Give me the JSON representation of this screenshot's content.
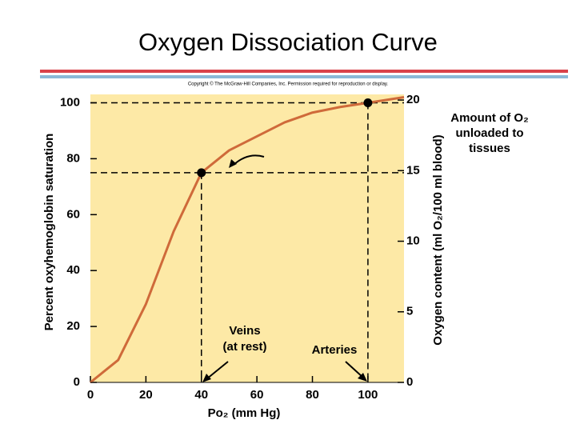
{
  "chart_data": {
    "type": "line",
    "title": "Oxygen Dissociation Curve",
    "copyright": "Copyright © The McGraw-Hill Companies, Inc. Permission required for reproduction or display.",
    "x_label": "Po₂ (mm Hg)",
    "y_label": "Percent oxyhemoglobin saturation",
    "y2_label": "Oxygen content (ml O₂/100 ml blood)",
    "x": [
      0,
      10,
      20,
      30,
      40,
      50,
      60,
      70,
      80,
      90,
      100,
      113
    ],
    "series": [
      {
        "color": "#cf6a3a",
        "values": [
          0,
          8,
          28,
          54,
          75,
          83,
          88,
          93,
          96.5,
          98.5,
          100,
          102
        ]
      }
    ],
    "points": [
      {
        "x": 40,
        "y": 75
      },
      {
        "x": 100,
        "y": 100
      }
    ],
    "annotations": [
      {
        "lines": [
          "Veins",
          "(at rest)"
        ]
      },
      {
        "lines": [
          "Arteries"
        ]
      },
      {
        "lines": [
          "Amount of O₂",
          "unloaded to",
          "tissues"
        ]
      }
    ],
    "xlim": [
      0,
      113
    ],
    "xticks": [
      0,
      20,
      40,
      60,
      80,
      100
    ],
    "ylim": [
      0,
      103
    ],
    "yticks": [
      0,
      20,
      40,
      60,
      80,
      100
    ],
    "y2lim": [
      0,
      20.4
    ],
    "y2ticks": [
      0,
      5,
      10,
      15,
      20
    ],
    "background": "#fde9a6"
  }
}
